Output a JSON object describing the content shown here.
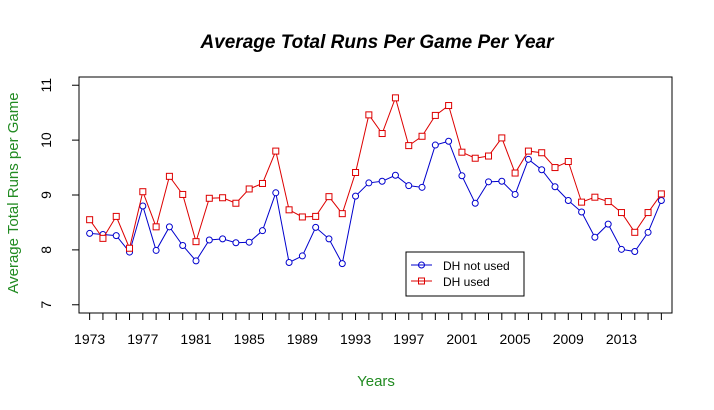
{
  "chart_data": {
    "type": "line",
    "title": "Average Total Runs Per Game Per Year",
    "xlabel": "Years",
    "ylabel": "Average Total Runs per Game",
    "xlim": [
      1972.2,
      2016.8
    ],
    "ylim": [
      6.85,
      11.15
    ],
    "x": [
      1973,
      1974,
      1975,
      1976,
      1977,
      1978,
      1979,
      1980,
      1981,
      1982,
      1983,
      1984,
      1985,
      1986,
      1987,
      1988,
      1989,
      1990,
      1991,
      1992,
      1993,
      1994,
      1995,
      1996,
      1997,
      1998,
      1999,
      2000,
      2001,
      2002,
      2003,
      2004,
      2005,
      2006,
      2007,
      2008,
      2009,
      2010,
      2011,
      2012,
      2013,
      2014,
      2015,
      2016
    ],
    "x_tick_values": [
      1973,
      1974,
      1975,
      1976,
      1977,
      1978,
      1979,
      1980,
      1981,
      1982,
      1983,
      1984,
      1985,
      1986,
      1987,
      1988,
      1989,
      1990,
      1991,
      1992,
      1993,
      1994,
      1995,
      1996,
      1997,
      1998,
      1999,
      2000,
      2001,
      2002,
      2003,
      2004,
      2005,
      2006,
      2007,
      2008,
      2009,
      2010,
      2011,
      2012,
      2013,
      2014,
      2015,
      2016
    ],
    "x_tick_labels": [
      "1973",
      "1977",
      "1981",
      "1985",
      "1989",
      "1993",
      "1997",
      "2001",
      "2005",
      "2009",
      "2013"
    ],
    "y_ticks": [
      "7",
      "8",
      "9",
      "10",
      "11"
    ],
    "series": [
      {
        "name": "DH not used",
        "color": "#0000CD",
        "marker": "circle",
        "values": [
          8.3,
          8.28,
          8.26,
          7.96,
          8.8,
          7.99,
          8.42,
          8.08,
          7.8,
          8.18,
          8.2,
          8.13,
          8.14,
          8.35,
          9.04,
          7.77,
          7.89,
          8.41,
          8.2,
          7.75,
          8.98,
          9.22,
          9.25,
          9.36,
          9.17,
          9.14,
          9.91,
          9.98,
          9.35,
          8.85,
          9.24,
          9.25,
          9.01,
          9.65,
          9.46,
          9.15,
          8.9,
          8.69,
          8.23,
          8.47,
          8.01,
          7.97,
          8.32,
          8.9
        ]
      },
      {
        "name": "DH used",
        "color": "#DD0000",
        "marker": "square",
        "values": [
          8.55,
          8.21,
          8.61,
          8.03,
          9.06,
          8.42,
          9.34,
          9.01,
          8.15,
          8.94,
          8.95,
          8.85,
          9.11,
          9.21,
          9.8,
          8.73,
          8.6,
          8.61,
          8.97,
          8.66,
          9.41,
          10.46,
          10.12,
          10.77,
          9.9,
          10.07,
          10.45,
          10.63,
          9.78,
          9.67,
          9.71,
          10.04,
          9.4,
          9.8,
          9.77,
          9.5,
          9.61,
          8.87,
          8.96,
          8.88,
          8.68,
          8.32,
          8.68,
          9.02
        ]
      }
    ],
    "legend": {
      "position": "bottom-center",
      "entries": [
        "DH not used",
        "DH used"
      ]
    },
    "grid": false
  }
}
